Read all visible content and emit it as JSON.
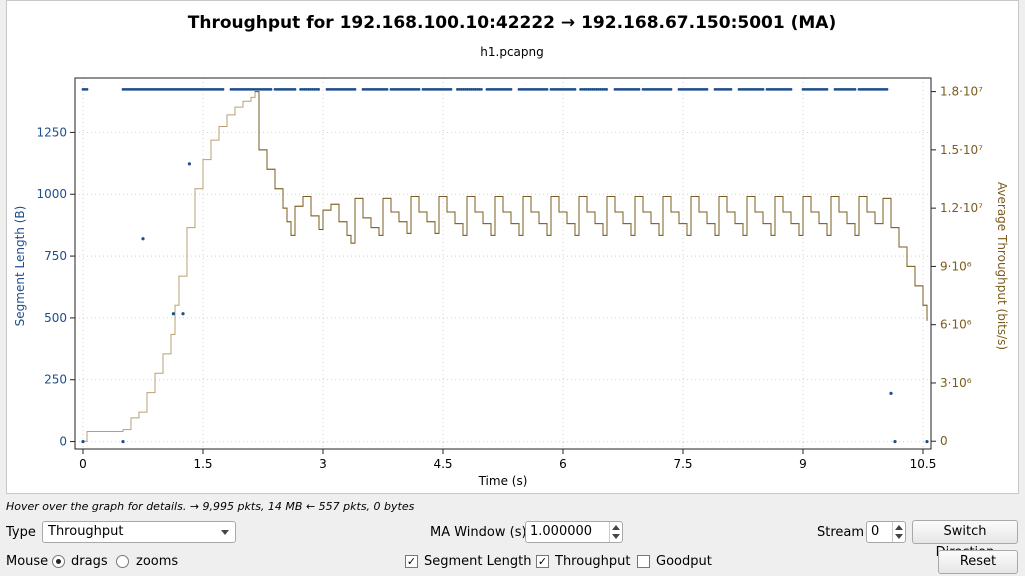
{
  "colors": {
    "segment": "#1f4e8c",
    "throughput": "#7a5c1e",
    "throughput_line": "#b8a070",
    "grid": "#d0d0d0"
  },
  "chart_data": {
    "type": "line",
    "title": "Throughput for 192.168.100.10:42222 → 192.168.67.150:5001 (MA)",
    "subtitle": "h1.pcapng",
    "xlabel": "Time (s)",
    "y1label": "Segment Length (B)",
    "y2label": "Average Throughput (bits/s)",
    "xlim": [
      -0.1,
      10.6
    ],
    "y1lim": [
      -30,
      1470
    ],
    "y2lim": [
      -400000.0,
      18700000.0
    ],
    "x_ticks": [
      "0",
      "1.5",
      "3",
      "4.5",
      "6",
      "7.5",
      "9",
      "10.5"
    ],
    "x_tick_values": [
      0,
      1.5,
      3,
      4.5,
      6,
      7.5,
      9,
      10.5
    ],
    "y1_ticks": [
      "0",
      "250",
      "500",
      "750",
      "1000",
      "1250"
    ],
    "y1_tick_values": [
      0,
      250,
      500,
      750,
      1000,
      1250
    ],
    "y2_ticks": [
      "0",
      "3·10⁶",
      "6·10⁶",
      "9·10⁶",
      "1.2·10⁷",
      "1.5·10⁷",
      "1.8·10⁷"
    ],
    "y2_tick_values": [
      0,
      3000000.0,
      6000000.0,
      9000000.0,
      12000000.0,
      15000000.0,
      18000000.0
    ],
    "grid": true,
    "series": [
      {
        "name": "Segment Length",
        "axis": "left",
        "style": "points",
        "full_size_bytes": 1424,
        "full_size_runs": [
          [
            0.0,
            0.05
          ],
          [
            0.5,
            1.75
          ],
          [
            1.85,
            2.35
          ],
          [
            2.4,
            2.65
          ],
          [
            2.72,
            2.95
          ],
          [
            3.05,
            3.4
          ],
          [
            3.5,
            3.8
          ],
          [
            3.85,
            4.2
          ],
          [
            4.25,
            4.6
          ],
          [
            4.68,
            5.0
          ],
          [
            5.05,
            5.35
          ],
          [
            5.45,
            5.8
          ],
          [
            5.85,
            6.15
          ],
          [
            6.22,
            6.55
          ],
          [
            6.65,
            6.95
          ],
          [
            7.0,
            7.35
          ],
          [
            7.45,
            7.8
          ],
          [
            7.9,
            8.1
          ],
          [
            8.2,
            8.5
          ],
          [
            8.55,
            8.85
          ],
          [
            9.0,
            9.3
          ],
          [
            9.4,
            9.65
          ],
          [
            9.7,
            10.05
          ]
        ],
        "points": [
          {
            "x": 0.0,
            "y": 0
          },
          {
            "x": 0.5,
            "y": 0
          },
          {
            "x": 0.75,
            "y": 820
          },
          {
            "x": 1.13,
            "y": 517
          },
          {
            "x": 1.25,
            "y": 517
          },
          {
            "x": 1.33,
            "y": 1123
          },
          {
            "x": 10.1,
            "y": 195
          },
          {
            "x": 10.15,
            "y": 0
          },
          {
            "x": 10.55,
            "y": 0
          }
        ]
      },
      {
        "name": "Throughput",
        "axis": "right",
        "style": "step",
        "points": [
          [
            0.0,
            0
          ],
          [
            0.05,
            500000.0
          ],
          [
            0.5,
            600000.0
          ],
          [
            0.6,
            1200000.0
          ],
          [
            0.7,
            1500000.0
          ],
          [
            0.8,
            2500000.0
          ],
          [
            0.9,
            3500000.0
          ],
          [
            1.0,
            4500000.0
          ],
          [
            1.1,
            5500000.0
          ],
          [
            1.15,
            7000000.0
          ],
          [
            1.2,
            8500000.0
          ],
          [
            1.3,
            11000000.0
          ],
          [
            1.4,
            13000000.0
          ],
          [
            1.5,
            14500000.0
          ],
          [
            1.6,
            15500000.0
          ],
          [
            1.7,
            16200000.0
          ],
          [
            1.8,
            16800000.0
          ],
          [
            1.9,
            17200000.0
          ],
          [
            2.0,
            17500000.0
          ],
          [
            2.1,
            17700000.0
          ],
          [
            2.15,
            18000000.0
          ],
          [
            2.2,
            15000000.0
          ],
          [
            2.3,
            14000000.0
          ],
          [
            2.4,
            13000000.0
          ],
          [
            2.5,
            12000000.0
          ],
          [
            2.55,
            11300000.0
          ],
          [
            2.6,
            10600000.0
          ],
          [
            2.65,
            12100000.0
          ],
          [
            2.75,
            12600000.0
          ],
          [
            2.85,
            11600000.0
          ],
          [
            2.95,
            10900000.0
          ],
          [
            3.0,
            11900000.0
          ],
          [
            3.1,
            12200000.0
          ],
          [
            3.2,
            11300000.0
          ],
          [
            3.3,
            10600000.0
          ],
          [
            3.35,
            10200000.0
          ],
          [
            3.4,
            12500000.0
          ],
          [
            3.5,
            11500000.0
          ],
          [
            3.6,
            11000000.0
          ],
          [
            3.7,
            10600000.0
          ],
          [
            3.75,
            12500000.0
          ],
          [
            3.85,
            11800000.0
          ],
          [
            3.95,
            11300000.0
          ],
          [
            4.05,
            10700000.0
          ],
          [
            4.1,
            12600000.0
          ],
          [
            4.2,
            11800000.0
          ],
          [
            4.3,
            11300000.0
          ],
          [
            4.4,
            10700000.0
          ],
          [
            4.45,
            12600000.0
          ],
          [
            4.55,
            11800000.0
          ],
          [
            4.65,
            11200000.0
          ],
          [
            4.75,
            10600000.0
          ],
          [
            4.8,
            12600000.0
          ],
          [
            4.9,
            11800000.0
          ],
          [
            5.0,
            11200000.0
          ],
          [
            5.1,
            10600000.0
          ],
          [
            5.15,
            12600000.0
          ],
          [
            5.25,
            11800000.0
          ],
          [
            5.35,
            11200000.0
          ],
          [
            5.45,
            10600000.0
          ],
          [
            5.5,
            12600000.0
          ],
          [
            5.6,
            11800000.0
          ],
          [
            5.7,
            11200000.0
          ],
          [
            5.8,
            10600000.0
          ],
          [
            5.85,
            12600000.0
          ],
          [
            5.95,
            11800000.0
          ],
          [
            6.05,
            11200000.0
          ],
          [
            6.15,
            10600000.0
          ],
          [
            6.2,
            12600000.0
          ],
          [
            6.3,
            11800000.0
          ],
          [
            6.4,
            11200000.0
          ],
          [
            6.5,
            10600000.0
          ],
          [
            6.55,
            12600000.0
          ],
          [
            6.65,
            11800000.0
          ],
          [
            6.75,
            11200000.0
          ],
          [
            6.85,
            10600000.0
          ],
          [
            6.9,
            12600000.0
          ],
          [
            7.0,
            11800000.0
          ],
          [
            7.1,
            11200000.0
          ],
          [
            7.2,
            10600000.0
          ],
          [
            7.25,
            12600000.0
          ],
          [
            7.35,
            11800000.0
          ],
          [
            7.45,
            11200000.0
          ],
          [
            7.55,
            10600000.0
          ],
          [
            7.6,
            12600000.0
          ],
          [
            7.7,
            11800000.0
          ],
          [
            7.8,
            11200000.0
          ],
          [
            7.9,
            10600000.0
          ],
          [
            7.95,
            12600000.0
          ],
          [
            8.05,
            11800000.0
          ],
          [
            8.15,
            11200000.0
          ],
          [
            8.25,
            10600000.0
          ],
          [
            8.3,
            12600000.0
          ],
          [
            8.4,
            11800000.0
          ],
          [
            8.5,
            11200000.0
          ],
          [
            8.6,
            10600000.0
          ],
          [
            8.65,
            12600000.0
          ],
          [
            8.75,
            11800000.0
          ],
          [
            8.85,
            11200000.0
          ],
          [
            8.95,
            10600000.0
          ],
          [
            9.0,
            12600000.0
          ],
          [
            9.1,
            11800000.0
          ],
          [
            9.2,
            11200000.0
          ],
          [
            9.3,
            10600000.0
          ],
          [
            9.35,
            12600000.0
          ],
          [
            9.45,
            11800000.0
          ],
          [
            9.55,
            11200000.0
          ],
          [
            9.65,
            10600000.0
          ],
          [
            9.7,
            12600000.0
          ],
          [
            9.8,
            11800000.0
          ],
          [
            9.9,
            11200000.0
          ],
          [
            10.0,
            12500000.0
          ],
          [
            10.1,
            11000000.0
          ],
          [
            10.2,
            10000000.0
          ],
          [
            10.3,
            9000000.0
          ],
          [
            10.4,
            8000000.0
          ],
          [
            10.5,
            7000000.0
          ],
          [
            10.55,
            6200000.0
          ]
        ]
      }
    ]
  },
  "status": {
    "hint": "Hover over the graph for details. → 9,995 pkts, 14 MB ← 557 pkts, 0 bytes"
  },
  "controls": {
    "type_label": "Type",
    "type_value": "Throughput",
    "ma_label": "MA Window (s)",
    "ma_value": "1.000000",
    "stream_label": "Stream",
    "stream_value": "0",
    "switch_direction": "Switch Direction",
    "mouse_label": "Mouse",
    "drags_label": "drags",
    "zooms_label": "zooms",
    "segment_length_label": "Segment Length",
    "throughput_label": "Throughput",
    "goodput_label": "Goodput",
    "reset_label": "Reset"
  }
}
